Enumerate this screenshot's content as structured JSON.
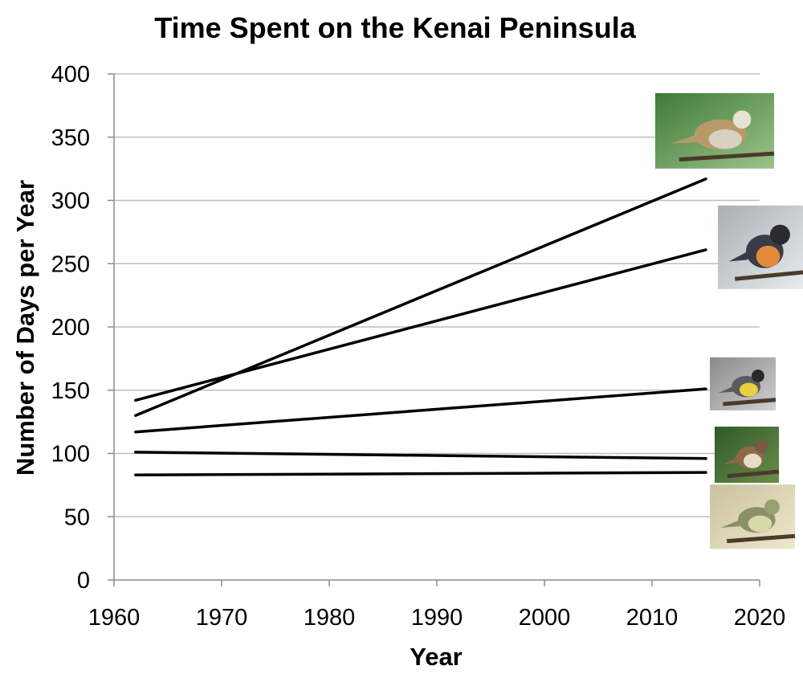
{
  "chart_data": {
    "type": "line",
    "title": "Time Spent on the Kenai Peninsula",
    "xlabel": "Year",
    "ylabel": "Number of Days per Year",
    "xlim": [
      1960,
      2020
    ],
    "ylim": [
      0,
      400
    ],
    "x_ticks": [
      1960,
      1970,
      1980,
      1990,
      2000,
      2010,
      2020
    ],
    "y_ticks": [
      0,
      50,
      100,
      150,
      200,
      250,
      300,
      350,
      400
    ],
    "grid": "horizontal",
    "legend": "none",
    "x": [
      1962,
      2015
    ],
    "series": [
      {
        "values": [
          130,
          317
        ]
      },
      {
        "values": [
          142,
          261
        ]
      },
      {
        "values": [
          117,
          151
        ]
      },
      {
        "values": [
          101,
          96
        ]
      },
      {
        "values": [
          83,
          85
        ]
      }
    ],
    "images": [
      {
        "icon": "sparrow-photo-icon",
        "y": 355
      },
      {
        "icon": "varied-thrush-photo-icon",
        "y": 263
      },
      {
        "icon": "yellow-rumped-warbler-photo-icon",
        "y": 155
      },
      {
        "icon": "hermit-thrush-photo-icon",
        "y": 99
      },
      {
        "icon": "orange-crowned-warbler-photo-icon",
        "y": 50
      }
    ]
  }
}
